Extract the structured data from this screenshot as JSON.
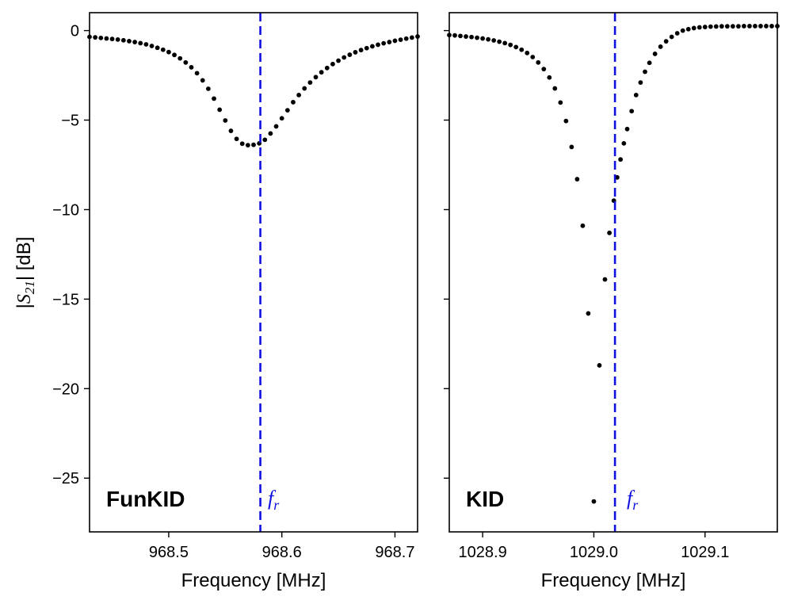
{
  "chart_data": [
    {
      "type": "scatter",
      "panel_label": "FunKID",
      "title": "",
      "xlabel": "Frequency [MHz]",
      "ylabel_prefix": "|",
      "ylabel_math_base": "S",
      "ylabel_math_sub": "21",
      "ylabel_suffix": "| [dB]",
      "xlim": [
        968.43,
        968.72
      ],
      "ylim": [
        -28,
        1
      ],
      "x_ticks": [
        968.5,
        968.6,
        968.7
      ],
      "x_tick_labels": [
        "968.5",
        "968.6",
        "968.7"
      ],
      "y_ticks": [
        0,
        -5,
        -10,
        -15,
        -20,
        -25
      ],
      "y_tick_labels": [
        "0",
        "−5",
        "−10",
        "−15",
        "−20",
        "−25"
      ],
      "resonance_frequency": 968.581,
      "resonance_label_base": "f",
      "resonance_label_sub": "r",
      "resonance_color": "#1010e0",
      "point_color": "#000000",
      "series": [
        {
          "name": "FunKID",
          "x": [
            968.43,
            968.435,
            968.44,
            968.445,
            968.45,
            968.455,
            968.46,
            968.465,
            968.47,
            968.475,
            968.48,
            968.485,
            968.49,
            968.495,
            968.5,
            968.505,
            968.51,
            968.515,
            968.52,
            968.525,
            968.53,
            968.535,
            968.54,
            968.545,
            968.55,
            968.555,
            968.56,
            968.565,
            968.57,
            968.575,
            968.58,
            968.585,
            968.59,
            968.595,
            968.6,
            968.605,
            968.61,
            968.615,
            968.62,
            968.625,
            968.63,
            968.635,
            968.64,
            968.645,
            968.65,
            968.655,
            968.66,
            968.665,
            968.67,
            968.675,
            968.68,
            968.685,
            968.69,
            968.695,
            968.7,
            968.705,
            968.71,
            968.715,
            968.72
          ],
          "y": [
            -0.35,
            -0.38,
            -0.41,
            -0.44,
            -0.47,
            -0.5,
            -0.54,
            -0.59,
            -0.64,
            -0.7,
            -0.77,
            -0.86,
            -0.96,
            -1.07,
            -1.2,
            -1.36,
            -1.55,
            -1.78,
            -2.05,
            -2.38,
            -2.78,
            -3.25,
            -3.8,
            -4.42,
            -5.02,
            -5.6,
            -6.05,
            -6.32,
            -6.4,
            -6.38,
            -6.3,
            -6.1,
            -5.75,
            -5.35,
            -4.9,
            -4.45,
            -4.0,
            -3.6,
            -3.23,
            -2.9,
            -2.6,
            -2.33,
            -2.09,
            -1.87,
            -1.68,
            -1.5,
            -1.35,
            -1.21,
            -1.09,
            -0.98,
            -0.88,
            -0.79,
            -0.71,
            -0.64,
            -0.57,
            -0.51,
            -0.45,
            -0.39,
            -0.33
          ]
        }
      ]
    },
    {
      "type": "scatter",
      "panel_label": "KID",
      "title": "",
      "xlabel": "Frequency [MHz]",
      "xlim": [
        1028.87,
        1029.165
      ],
      "ylim": [
        -28,
        1
      ],
      "x_ticks": [
        1028.9,
        1029.0,
        1029.1
      ],
      "x_tick_labels": [
        "1028.9",
        "1029.0",
        "1029.1"
      ],
      "y_ticks": [
        0,
        -5,
        -10,
        -15,
        -20,
        -25
      ],
      "resonance_frequency": 1029.019,
      "resonance_label_base": "f",
      "resonance_label_sub": "r",
      "resonance_color": "#1010e0",
      "point_color": "#000000",
      "series": [
        {
          "name": "KID",
          "x": [
            1028.87,
            1028.875,
            1028.88,
            1028.885,
            1028.89,
            1028.895,
            1028.9,
            1028.905,
            1028.91,
            1028.915,
            1028.92,
            1028.925,
            1028.93,
            1028.935,
            1028.94,
            1028.945,
            1028.95,
            1028.955,
            1028.96,
            1028.965,
            1028.97,
            1028.975,
            1028.98,
            1028.985,
            1028.99,
            1028.995,
            1029.0,
            1029.005,
            1029.01,
            1029.014,
            1029.018,
            1029.021,
            1029.024,
            1029.027,
            1029.03,
            1029.034,
            1029.038,
            1029.042,
            1029.046,
            1029.05,
            1029.055,
            1029.06,
            1029.065,
            1029.07,
            1029.075,
            1029.08,
            1029.085,
            1029.09,
            1029.095,
            1029.1,
            1029.105,
            1029.11,
            1029.115,
            1029.12,
            1029.125,
            1029.13,
            1029.135,
            1029.14,
            1029.145,
            1029.15,
            1029.155,
            1029.16,
            1029.165
          ],
          "y": [
            -0.25,
            -0.27,
            -0.3,
            -0.33,
            -0.36,
            -0.4,
            -0.44,
            -0.49,
            -0.55,
            -0.62,
            -0.7,
            -0.8,
            -0.92,
            -1.07,
            -1.25,
            -1.48,
            -1.78,
            -2.15,
            -2.62,
            -3.23,
            -4.02,
            -5.05,
            -6.5,
            -8.3,
            -10.9,
            -15.8,
            -26.3,
            -18.7,
            -13.9,
            -11.3,
            -9.5,
            -8.2,
            -7.2,
            -6.3,
            -5.5,
            -4.5,
            -3.6,
            -2.9,
            -2.3,
            -1.8,
            -1.3,
            -0.9,
            -0.6,
            -0.35,
            -0.15,
            0.0,
            0.08,
            0.14,
            0.18,
            0.2,
            0.22,
            0.23,
            0.24,
            0.24,
            0.24,
            0.24,
            0.25,
            0.25,
            0.25,
            0.25,
            0.25,
            0.25,
            0.25
          ]
        }
      ]
    }
  ]
}
